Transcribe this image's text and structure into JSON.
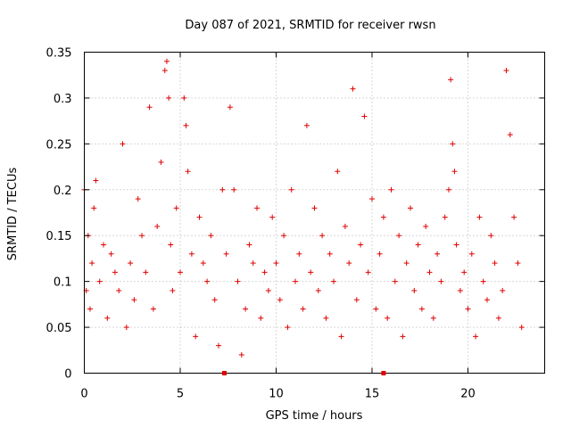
{
  "chart_data": {
    "type": "scatter",
    "title": "Day 087 of 2021, SRMTID for receiver rwsn",
    "xlabel": "GPS time / hours",
    "ylabel": "SRMTID / TECUs",
    "xlim": [
      0,
      24
    ],
    "ylim": [
      0,
      0.35
    ],
    "xticks": [
      0,
      5,
      10,
      15,
      20
    ],
    "xtick_labels": [
      "0",
      "5",
      "10",
      "15",
      "20"
    ],
    "yticks": [
      0,
      0.05,
      0.1,
      0.15,
      0.2,
      0.25,
      0.3,
      0.35
    ],
    "ytick_labels": [
      "0",
      "0.05",
      "0.1",
      "0.15",
      "0.2",
      "0.25",
      "0.3",
      "0.35"
    ],
    "grid": true,
    "marker": "+",
    "color": "#e00000",
    "gap_markers": [
      7.3,
      15.6
    ],
    "series": [
      {
        "name": "SRMTID",
        "x": [
          0.0,
          0.1,
          0.2,
          0.3,
          0.4,
          0.5,
          0.6,
          0.8,
          1.0,
          1.2,
          1.4,
          1.6,
          1.8,
          2.0,
          2.2,
          2.4,
          2.6,
          2.8,
          3.0,
          3.2,
          3.4,
          3.6,
          3.8,
          4.0,
          4.2,
          4.3,
          4.4,
          4.5,
          4.6,
          4.8,
          5.0,
          5.2,
          5.3,
          5.4,
          5.6,
          5.8,
          6.0,
          6.2,
          6.4,
          6.6,
          6.8,
          7.0,
          7.2,
          7.4,
          7.6,
          7.8,
          8.0,
          8.2,
          8.4,
          8.6,
          8.8,
          9.0,
          9.2,
          9.4,
          9.6,
          9.8,
          10.0,
          10.2,
          10.4,
          10.6,
          10.8,
          11.0,
          11.2,
          11.4,
          11.6,
          11.8,
          12.0,
          12.2,
          12.4,
          12.6,
          12.8,
          13.0,
          13.2,
          13.4,
          13.6,
          13.8,
          14.0,
          14.2,
          14.4,
          14.6,
          14.8,
          15.0,
          15.2,
          15.4,
          15.6,
          15.8,
          16.0,
          16.2,
          16.4,
          16.6,
          16.8,
          17.0,
          17.2,
          17.4,
          17.6,
          17.8,
          18.0,
          18.2,
          18.4,
          18.6,
          18.8,
          19.0,
          19.1,
          19.2,
          19.3,
          19.4,
          19.6,
          19.8,
          20.0,
          20.2,
          20.4,
          20.6,
          20.8,
          21.0,
          21.2,
          21.4,
          21.6,
          21.8,
          22.0,
          22.2,
          22.4,
          22.6,
          22.8
        ],
        "y": [
          0.2,
          0.09,
          0.15,
          0.07,
          0.12,
          0.18,
          0.21,
          0.1,
          0.14,
          0.06,
          0.13,
          0.11,
          0.09,
          0.25,
          0.05,
          0.12,
          0.08,
          0.19,
          0.15,
          0.11,
          0.29,
          0.07,
          0.16,
          0.23,
          0.33,
          0.34,
          0.3,
          0.14,
          0.09,
          0.18,
          0.11,
          0.3,
          0.27,
          0.22,
          0.13,
          0.04,
          0.17,
          0.12,
          0.1,
          0.15,
          0.08,
          0.03,
          0.2,
          0.13,
          0.29,
          0.2,
          0.1,
          0.02,
          0.07,
          0.14,
          0.12,
          0.18,
          0.06,
          0.11,
          0.09,
          0.17,
          0.12,
          0.08,
          0.15,
          0.05,
          0.2,
          0.1,
          0.13,
          0.07,
          0.27,
          0.11,
          0.18,
          0.09,
          0.15,
          0.06,
          0.13,
          0.1,
          0.22,
          0.04,
          0.16,
          0.12,
          0.31,
          0.08,
          0.14,
          0.28,
          0.11,
          0.19,
          0.07,
          0.13,
          0.17,
          0.06,
          0.2,
          0.1,
          0.15,
          0.04,
          0.12,
          0.18,
          0.09,
          0.14,
          0.07,
          0.16,
          0.11,
          0.06,
          0.13,
          0.1,
          0.17,
          0.2,
          0.32,
          0.25,
          0.22,
          0.14,
          0.09,
          0.11,
          0.07,
          0.13,
          0.04,
          0.17,
          0.1,
          0.08,
          0.15,
          0.12,
          0.06,
          0.09,
          0.33,
          0.26,
          0.17,
          0.12,
          0.05
        ]
      }
    ]
  }
}
